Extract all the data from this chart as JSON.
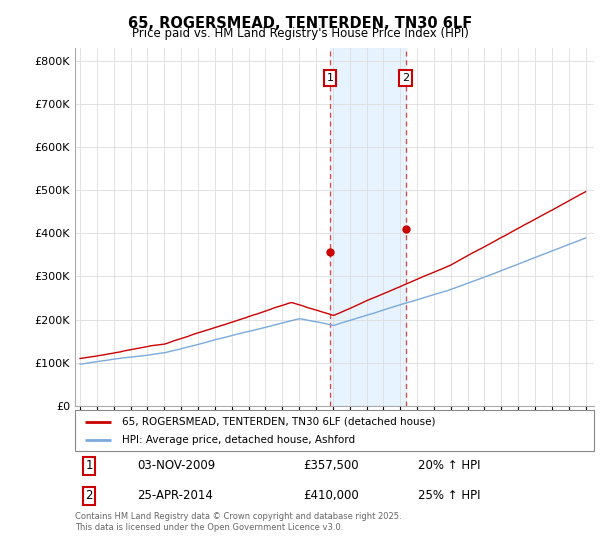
{
  "title": "65, ROGERSMEAD, TENTERDEN, TN30 6LF",
  "subtitle": "Price paid vs. HM Land Registry's House Price Index (HPI)",
  "legend_line1": "65, ROGERSMEAD, TENTERDEN, TN30 6LF (detached house)",
  "legend_line2": "HPI: Average price, detached house, Ashford",
  "annotation1_date": "03-NOV-2009",
  "annotation1_price": "£357,500",
  "annotation1_hpi": "20% ↑ HPI",
  "annotation2_date": "25-APR-2014",
  "annotation2_price": "£410,000",
  "annotation2_hpi": "25% ↑ HPI",
  "footer": "Contains HM Land Registry data © Crown copyright and database right 2025.\nThis data is licensed under the Open Government Licence v3.0.",
  "red_color": "#cc0000",
  "blue_color": "#7aaadd",
  "shade_color": "#ddeeff",
  "vline_color": "#dd4444",
  "ann1_year": 2009.83,
  "ann2_year": 2014.32,
  "ann1_price": 357500,
  "ann2_price": 410000,
  "start_year": 1995,
  "end_year": 2025
}
